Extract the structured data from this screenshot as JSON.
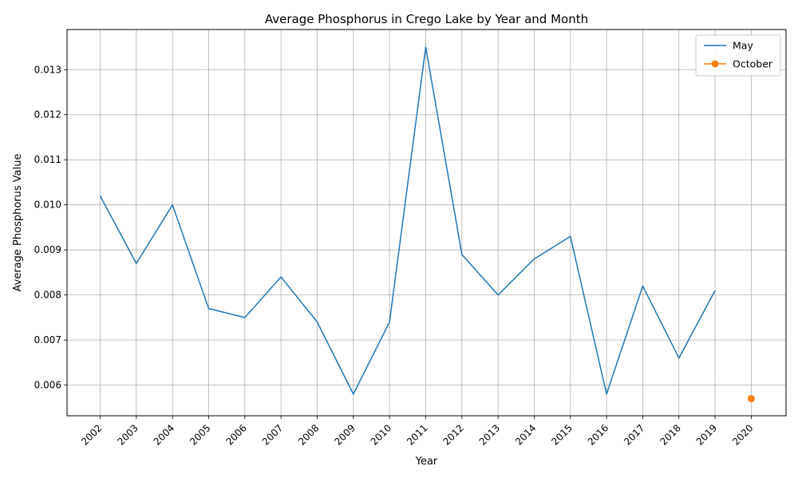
{
  "chart_data": {
    "type": "line",
    "title": "Average Phosphorus in Crego Lake by Year and Month",
    "xlabel": "Year",
    "ylabel": "Average Phosphorus Value",
    "categories": [
      "2002",
      "2003",
      "2004",
      "2005",
      "2006",
      "2007",
      "2008",
      "2009",
      "2010",
      "2011",
      "2012",
      "2013",
      "2014",
      "2015",
      "2016",
      "2017",
      "2018",
      "2019",
      "2020"
    ],
    "ylim": [
      0.00532,
      0.01389
    ],
    "yticks": [
      "0.006",
      "0.007",
      "0.008",
      "0.009",
      "0.010",
      "0.011",
      "0.012",
      "0.013"
    ],
    "grid": true,
    "legend_position": "top-right",
    "series": [
      {
        "name": "May",
        "color": "#1f77b4",
        "marker": "none",
        "values": [
          0.0102,
          0.0087,
          0.01,
          0.0077,
          0.0075,
          0.0084,
          0.0074,
          0.0058,
          0.0074,
          0.0135,
          0.0089,
          0.008,
          0.0088,
          0.0093,
          0.0058,
          0.0082,
          0.0066,
          0.0081,
          null
        ]
      },
      {
        "name": "October",
        "color": "#ff7f0e",
        "marker": "circle",
        "values": [
          null,
          null,
          null,
          null,
          null,
          null,
          null,
          null,
          null,
          null,
          null,
          null,
          null,
          null,
          null,
          null,
          null,
          null,
          0.0057
        ]
      }
    ]
  }
}
